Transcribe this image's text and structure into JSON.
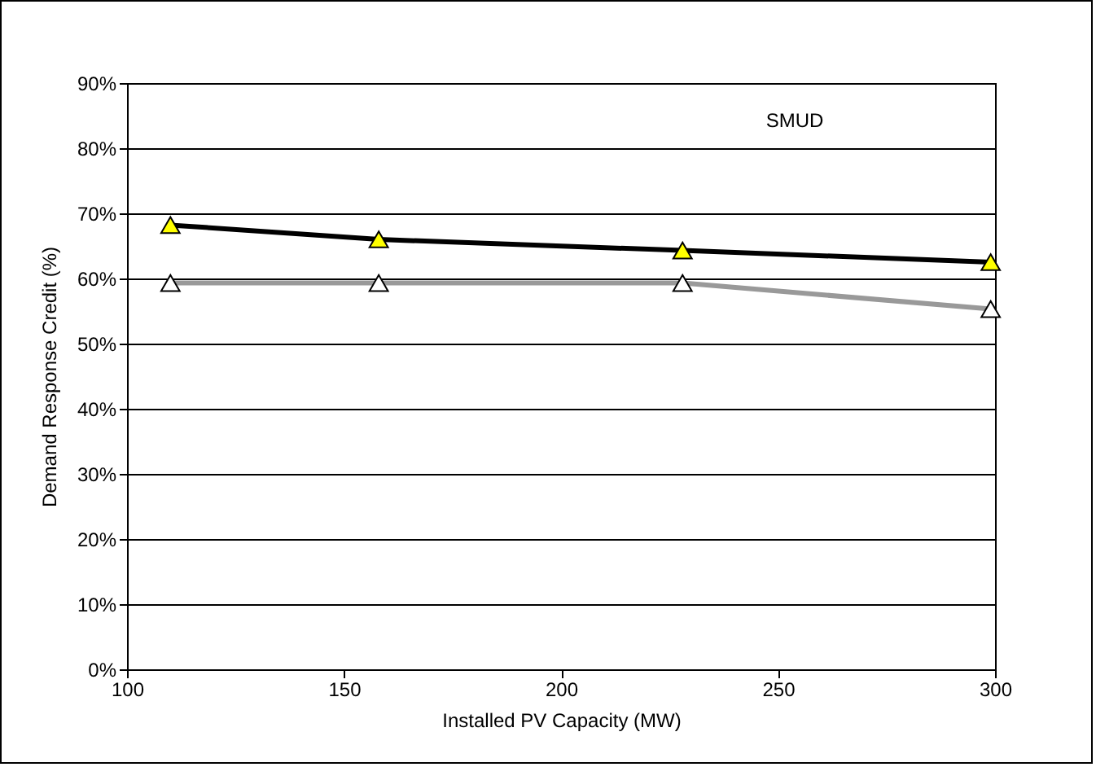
{
  "chart_data": {
    "type": "line",
    "xlabel": "Installed PV Capacity (MW)",
    "ylabel": "Demand Response Credit (%)",
    "x": [
      110,
      158,
      228,
      299
    ],
    "series": [
      {
        "color": "#000000",
        "values": [
          68.2,
          66,
          64.3,
          62.5
        ]
      },
      {
        "color": "#999999",
        "values": [
          59.3,
          59.3,
          59.3,
          55.3
        ]
      }
    ],
    "annotations": [
      "SMUD"
    ],
    "xlim": [
      100,
      300
    ],
    "xticks": [
      100,
      150,
      200,
      250,
      300
    ],
    "ylim": [
      0,
      90
    ],
    "yticks": [
      {
        "value": 0,
        "label": "0%"
      },
      {
        "value": 10,
        "label": "10%"
      },
      {
        "value": 20,
        "label": "20%"
      },
      {
        "value": 30,
        "label": "30%"
      },
      {
        "value": 40,
        "label": "40%"
      },
      {
        "value": 50,
        "label": "50%"
      },
      {
        "value": 60,
        "label": "60%"
      },
      {
        "value": 70,
        "label": "70%"
      },
      {
        "value": 80,
        "label": "80%"
      },
      {
        "value": 90,
        "label": "90%"
      }
    ],
    "grid": "y",
    "marker": "triangle"
  }
}
